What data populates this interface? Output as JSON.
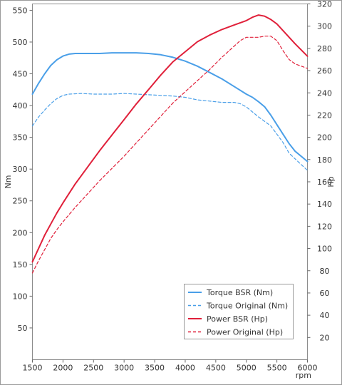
{
  "chart_data": {
    "type": "line",
    "title": "",
    "xlabel": "rpm",
    "ylabel_left": "Nm",
    "ylabel_right": "Hp",
    "xlim": [
      1500,
      6000
    ],
    "ylim_left": [
      0,
      560
    ],
    "ylim_right": [
      0,
      320
    ],
    "x_ticks": [
      1500,
      2000,
      2500,
      3000,
      3500,
      4000,
      4500,
      5000,
      5500,
      6000
    ],
    "y_ticks_left": [
      50,
      100,
      150,
      200,
      250,
      300,
      350,
      400,
      450,
      500,
      550
    ],
    "y_ticks_right": [
      20,
      40,
      60,
      80,
      100,
      120,
      140,
      160,
      180,
      200,
      220,
      240,
      260,
      280,
      300,
      320
    ],
    "grid": false,
    "legend_position": "bottom-right",
    "series": [
      {
        "name": "Torque BSR (Nm)",
        "axis": "left",
        "color": "#4a9fe8",
        "dash": "solid",
        "points": [
          [
            1500,
            418
          ],
          [
            1600,
            435
          ],
          [
            1700,
            450
          ],
          [
            1800,
            463
          ],
          [
            1900,
            472
          ],
          [
            2000,
            478
          ],
          [
            2100,
            481
          ],
          [
            2200,
            482
          ],
          [
            2400,
            482
          ],
          [
            2600,
            482
          ],
          [
            2800,
            483
          ],
          [
            3000,
            483
          ],
          [
            3200,
            483
          ],
          [
            3400,
            482
          ],
          [
            3600,
            480
          ],
          [
            3800,
            476
          ],
          [
            4000,
            470
          ],
          [
            4200,
            462
          ],
          [
            4400,
            452
          ],
          [
            4600,
            442
          ],
          [
            4800,
            430
          ],
          [
            5000,
            418
          ],
          [
            5100,
            413
          ],
          [
            5200,
            406
          ],
          [
            5300,
            398
          ],
          [
            5400,
            385
          ],
          [
            5500,
            370
          ],
          [
            5600,
            355
          ],
          [
            5700,
            340
          ],
          [
            5800,
            328
          ],
          [
            6000,
            312
          ]
        ]
      },
      {
        "name": "Torque Original (Nm)",
        "axis": "left",
        "color": "#4a9fe8",
        "dash": "dashed",
        "points": [
          [
            1500,
            368
          ],
          [
            1600,
            382
          ],
          [
            1700,
            393
          ],
          [
            1800,
            403
          ],
          [
            1900,
            411
          ],
          [
            2000,
            416
          ],
          [
            2100,
            418
          ],
          [
            2300,
            419
          ],
          [
            2500,
            418
          ],
          [
            2800,
            418
          ],
          [
            3000,
            419
          ],
          [
            3200,
            418
          ],
          [
            3400,
            417
          ],
          [
            3600,
            416
          ],
          [
            3800,
            415
          ],
          [
            4000,
            413
          ],
          [
            4200,
            409
          ],
          [
            4400,
            407
          ],
          [
            4600,
            405
          ],
          [
            4800,
            405
          ],
          [
            4900,
            403
          ],
          [
            5000,
            398
          ],
          [
            5100,
            390
          ],
          [
            5200,
            382
          ],
          [
            5300,
            375
          ],
          [
            5400,
            368
          ],
          [
            5500,
            355
          ],
          [
            5600,
            342
          ],
          [
            5700,
            325
          ],
          [
            5800,
            316
          ],
          [
            6000,
            298
          ]
        ]
      },
      {
        "name": "Power BSR (Hp)",
        "axis": "right",
        "color": "#e0203a",
        "dash": "solid",
        "points": [
          [
            1500,
            88
          ],
          [
            1600,
            100
          ],
          [
            1700,
            112
          ],
          [
            1800,
            122
          ],
          [
            1900,
            132
          ],
          [
            2000,
            141
          ],
          [
            2200,
            158
          ],
          [
            2400,
            173
          ],
          [
            2600,
            188
          ],
          [
            2800,
            202
          ],
          [
            3000,
            216
          ],
          [
            3200,
            230
          ],
          [
            3400,
            243
          ],
          [
            3600,
            256
          ],
          [
            3800,
            268
          ],
          [
            4000,
            277
          ],
          [
            4200,
            286
          ],
          [
            4400,
            292
          ],
          [
            4600,
            297
          ],
          [
            4800,
            301
          ],
          [
            5000,
            305
          ],
          [
            5100,
            308
          ],
          [
            5200,
            310
          ],
          [
            5300,
            309
          ],
          [
            5400,
            306
          ],
          [
            5500,
            302
          ],
          [
            5600,
            296
          ],
          [
            5700,
            290
          ],
          [
            5800,
            284
          ],
          [
            6000,
            273
          ]
        ]
      },
      {
        "name": "Power Original (Hp)",
        "axis": "right",
        "color": "#e0203a",
        "dash": "dashed",
        "points": [
          [
            1500,
            78
          ],
          [
            1600,
            89
          ],
          [
            1700,
            99
          ],
          [
            1800,
            109
          ],
          [
            1900,
            117
          ],
          [
            2000,
            124
          ],
          [
            2200,
            137
          ],
          [
            2400,
            149
          ],
          [
            2600,
            161
          ],
          [
            2800,
            172
          ],
          [
            3000,
            183
          ],
          [
            3200,
            195
          ],
          [
            3400,
            207
          ],
          [
            3600,
            219
          ],
          [
            3800,
            231
          ],
          [
            4000,
            241
          ],
          [
            4200,
            251
          ],
          [
            4400,
            261
          ],
          [
            4600,
            272
          ],
          [
            4800,
            282
          ],
          [
            4900,
            287
          ],
          [
            5000,
            290
          ],
          [
            5200,
            290
          ],
          [
            5300,
            291
          ],
          [
            5400,
            291
          ],
          [
            5500,
            287
          ],
          [
            5600,
            278
          ],
          [
            5700,
            270
          ],
          [
            5800,
            266
          ],
          [
            6000,
            262
          ]
        ]
      }
    ]
  }
}
